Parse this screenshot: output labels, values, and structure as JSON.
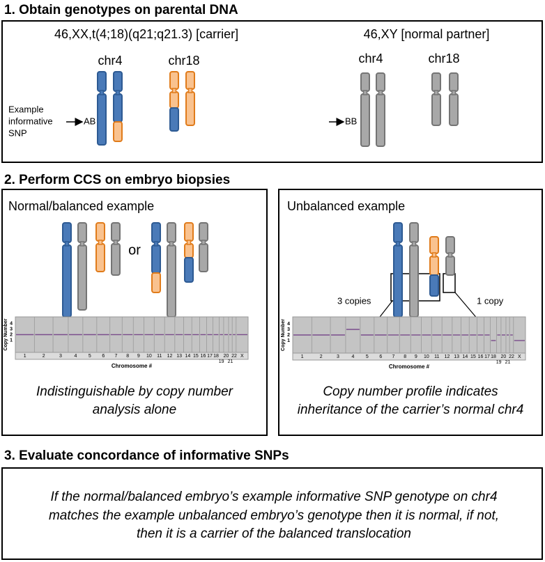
{
  "section1": {
    "heading": "1. Obtain genotypes on parental DNA",
    "carrier": {
      "label": "46,XX,t(4;18)(q21;q21.3) [carrier]",
      "chr_labels": [
        "chr4",
        "chr18"
      ],
      "snp_label": [
        "Example",
        "informative",
        "SNP"
      ],
      "genotype": "AB"
    },
    "partner": {
      "label": "46,XY [normal partner]",
      "chr_labels": [
        "chr4",
        "chr18"
      ],
      "genotype": "BB"
    }
  },
  "section2": {
    "heading": "2. Perform CCS on embryo biopsies",
    "left": {
      "title": "Normal/balanced example",
      "or": "or",
      "plot": {
        "y_label": "Copy Number",
        "y_ticks": [
          "4",
          "3",
          "2",
          "1"
        ],
        "x_label": "Chromosome #",
        "x_labels": [
          "1",
          "2",
          "3",
          "4",
          "5",
          "6",
          "7",
          "8",
          "9",
          "10",
          "11",
          "12",
          "13",
          "14",
          "15",
          "16",
          "17",
          "18",
          "19",
          "20",
          "21",
          "22",
          "X"
        ]
      },
      "caption": [
        "Indistinguishable by copy number",
        "analysis alone"
      ]
    },
    "right": {
      "title": "Unbalanced example",
      "annotations": [
        "3 copies",
        "1 copy"
      ],
      "plot": {
        "y_label": "Copy Number",
        "y_ticks": [
          "4",
          "3",
          "2",
          "1"
        ],
        "x_label": "Chromosome #",
        "x_labels": [
          "1",
          "2",
          "3",
          "4",
          "5",
          "6",
          "7",
          "8",
          "9",
          "10",
          "11",
          "12",
          "13",
          "14",
          "15",
          "16",
          "17",
          "18",
          "19",
          "20",
          "21",
          "22",
          "X"
        ]
      },
      "caption": [
        "Copy number profile indicates",
        "inheritance of the carrier’s normal chr4"
      ]
    }
  },
  "section3": {
    "heading": "3. Evaluate concordance of informative SNPs",
    "text": [
      "If the normal/balanced embryo’s example informative SNP genotype on chr4",
      "matches the example unbalanced embryo’s genotype then it is normal, if not,",
      "then it is a carrier of the balanced translocation"
    ]
  }
}
